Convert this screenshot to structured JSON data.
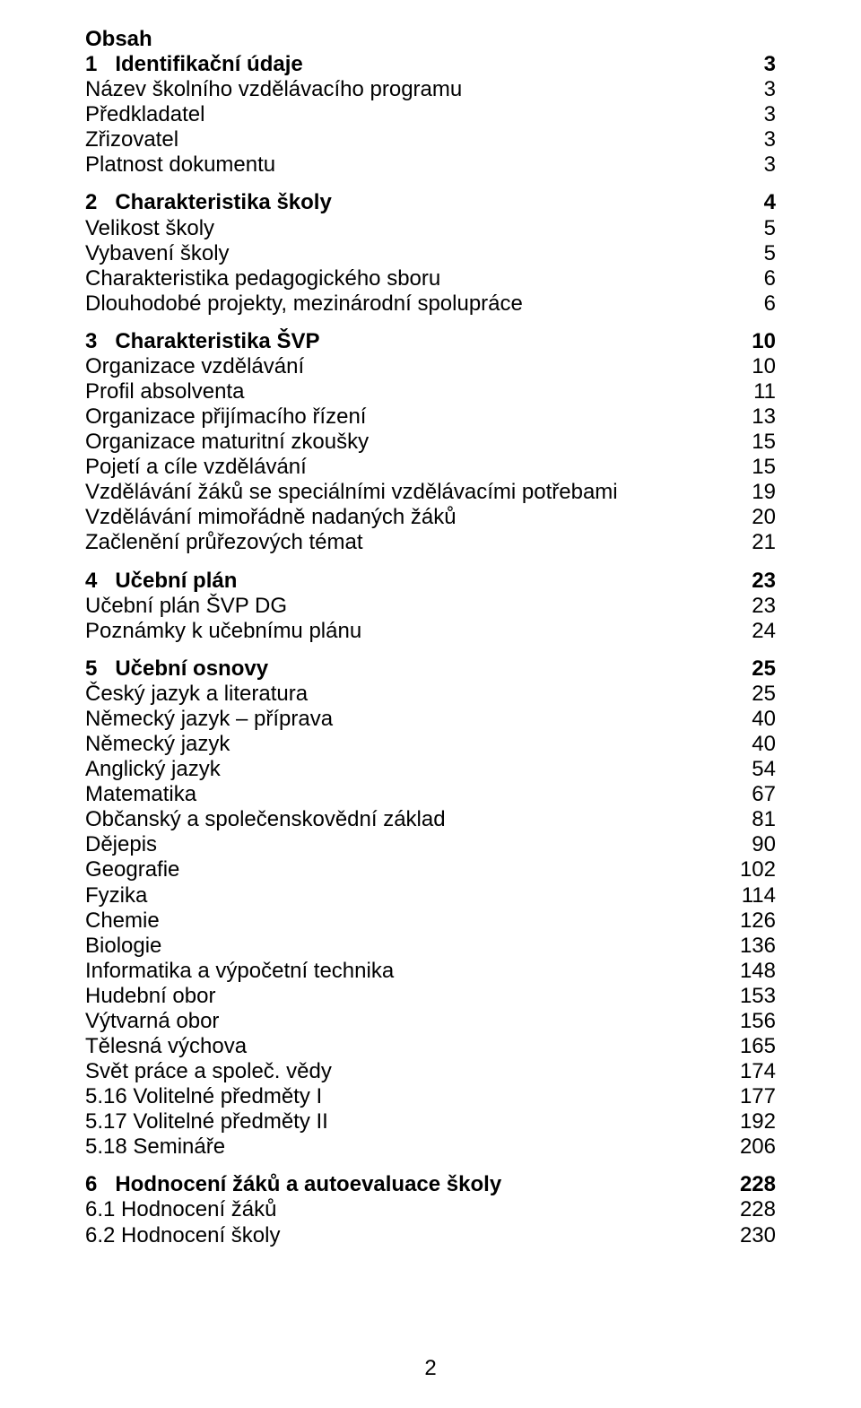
{
  "title": "Obsah",
  "page_number": "2",
  "sections": [
    {
      "heading": {
        "label": "1   Identifikační údaje",
        "page": "3"
      },
      "items": [
        {
          "label": "Název školního vzdělávacího programu",
          "page": "3"
        },
        {
          "label": "Předkladatel",
          "page": "3"
        },
        {
          "label": "Zřizovatel",
          "page": "3"
        },
        {
          "label": "Platnost dokumentu",
          "page": "3"
        }
      ]
    },
    {
      "heading": {
        "label": "2   Charakteristika školy",
        "page": "4"
      },
      "items": [
        {
          "label": "Velikost školy",
          "page": "5"
        },
        {
          "label": "Vybavení školy",
          "page": "5"
        },
        {
          "label": "Charakteristika pedagogického sboru",
          "page": "6"
        },
        {
          "label": "Dlouhodobé projekty, mezinárodní spolupráce",
          "page": "6"
        }
      ]
    },
    {
      "heading": {
        "label": "3   Charakteristika ŠVP",
        "page": "10"
      },
      "items": [
        {
          "label": "Organizace vzdělávání",
          "page": "10"
        },
        {
          "label": "Profil absolventa",
          "page": "11"
        },
        {
          "label": "Organizace přijímacího řízení",
          "page": "13"
        },
        {
          "label": "Organizace maturitní zkoušky",
          "page": "15"
        },
        {
          "label": "Pojetí a cíle vzdělávání",
          "page": "15"
        },
        {
          "label": "Vzdělávání žáků se speciálními vzdělávacími potřebami",
          "page": "19"
        },
        {
          "label": "Vzdělávání mimořádně nadaných žáků",
          "page": "20"
        },
        {
          "label": "Začlenění průřezových témat",
          "page": "21"
        }
      ]
    },
    {
      "heading": {
        "label": "4   Učební plán",
        "page": "23"
      },
      "items": [
        {
          "label": "Učební plán ŠVP DG",
          "page": "23"
        },
        {
          "label": "Poznámky k učebnímu plánu",
          "page": "24"
        }
      ]
    },
    {
      "heading": {
        "label": "5   Učební osnovy",
        "page": "25"
      },
      "items": [
        {
          "label": "Český jazyk a literatura",
          "page": "25"
        },
        {
          "label": "Německý jazyk – příprava",
          "page": "40"
        },
        {
          "label": "Německý jazyk",
          "page": "40"
        },
        {
          "label": "Anglický jazyk",
          "page": "54"
        },
        {
          "label": "Matematika",
          "page": "67"
        },
        {
          "label": "Občanský a společenskovědní základ",
          "page": "81"
        },
        {
          "label": "Dějepis",
          "page": "90"
        },
        {
          "label": "Geografie",
          "page": "102"
        },
        {
          "label": "Fyzika",
          "page": "114"
        },
        {
          "label": "Chemie",
          "page": "126"
        },
        {
          "label": "Biologie",
          "page": "136"
        },
        {
          "label": "Informatika a výpočetní technika",
          "page": "148"
        },
        {
          "label": "Hudební obor",
          "page": "153"
        },
        {
          "label": "Výtvarná obor",
          "page": "156"
        },
        {
          "label": "Tělesná výchova",
          "page": "165"
        },
        {
          "label": "Svět práce a společ. vědy",
          "page": "174"
        },
        {
          "label": "5.16 Volitelné předměty I",
          "page": "177"
        },
        {
          "label": "5.17 Volitelné předměty II",
          "page": "192"
        },
        {
          "label": "5.18 Semináře",
          "page": "206"
        }
      ]
    },
    {
      "heading": {
        "label": "6   Hodnocení žáků a autoevaluace školy",
        "page": "228"
      },
      "items": [
        {
          "label": "6.1 Hodnocení žáků",
          "page": "228"
        },
        {
          "label": "6.2 Hodnocení školy",
          "page": "230"
        }
      ]
    }
  ]
}
